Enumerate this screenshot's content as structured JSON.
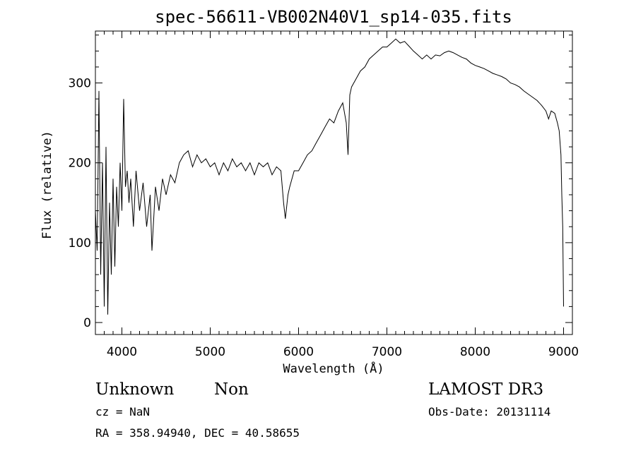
{
  "chart_data": {
    "type": "line",
    "title": "spec-56611-VB002N40V1_sp14-035.fits",
    "xlabel": "Wavelength (Å)",
    "ylabel": "Flux (relative)",
    "xlim": [
      3700,
      9100
    ],
    "ylim": [
      -15,
      365
    ],
    "xticks": [
      4000,
      5000,
      6000,
      7000,
      8000,
      9000
    ],
    "yticks": [
      0,
      100,
      200,
      300
    ],
    "grid": false,
    "series": [
      {
        "name": "",
        "x": [
          3700,
          3720,
          3740,
          3760,
          3780,
          3800,
          3820,
          3840,
          3860,
          3880,
          3900,
          3920,
          3940,
          3960,
          3980,
          4000,
          4020,
          4040,
          4060,
          4080,
          4100,
          4130,
          4160,
          4200,
          4240,
          4280,
          4320,
          4340,
          4380,
          4420,
          4460,
          4500,
          4550,
          4600,
          4650,
          4700,
          4750,
          4800,
          4850,
          4900,
          4950,
          5000,
          5050,
          5100,
          5150,
          5200,
          5250,
          5300,
          5350,
          5400,
          5450,
          5500,
          5550,
          5600,
          5650,
          5700,
          5750,
          5800,
          5830,
          5850,
          5880,
          5900,
          5950,
          6000,
          6050,
          6100,
          6150,
          6200,
          6250,
          6300,
          6350,
          6400,
          6450,
          6500,
          6540,
          6560,
          6580,
          6600,
          6650,
          6700,
          6750,
          6800,
          6850,
          6900,
          6950,
          7000,
          7050,
          7100,
          7150,
          7200,
          7250,
          7300,
          7350,
          7400,
          7450,
          7500,
          7550,
          7600,
          7650,
          7700,
          7750,
          7800,
          7850,
          7900,
          7950,
          8000,
          8050,
          8100,
          8150,
          8200,
          8250,
          8300,
          8350,
          8400,
          8450,
          8500,
          8550,
          8600,
          8650,
          8700,
          8750,
          8800,
          8830,
          8860,
          8900,
          8930,
          8950,
          8970,
          8980,
          8990,
          9000
        ],
        "values": [
          140,
          90,
          290,
          60,
          200,
          20,
          220,
          10,
          150,
          60,
          180,
          70,
          170,
          120,
          200,
          140,
          280,
          170,
          190,
          150,
          180,
          120,
          190,
          140,
          175,
          120,
          160,
          90,
          170,
          140,
          180,
          160,
          185,
          175,
          200,
          210,
          215,
          195,
          210,
          200,
          205,
          195,
          200,
          185,
          200,
          190,
          205,
          195,
          200,
          190,
          200,
          185,
          200,
          195,
          200,
          185,
          195,
          190,
          150,
          130,
          160,
          170,
          190,
          190,
          200,
          210,
          215,
          225,
          235,
          245,
          255,
          250,
          265,
          275,
          250,
          210,
          285,
          295,
          305,
          315,
          320,
          330,
          335,
          340,
          345,
          345,
          350,
          355,
          350,
          352,
          346,
          340,
          335,
          330,
          335,
          330,
          335,
          334,
          338,
          340,
          338,
          335,
          332,
          330,
          325,
          322,
          320,
          318,
          315,
          312,
          310,
          308,
          305,
          300,
          298,
          295,
          290,
          286,
          282,
          278,
          272,
          265,
          255,
          265,
          262,
          250,
          240,
          210,
          160,
          120,
          20
        ]
      }
    ]
  },
  "info": {
    "object_class": "Unknown",
    "subclass": "Non",
    "survey": "LAMOST DR3",
    "cz": "cz = NaN",
    "obs_date": "Obs-Date: 20131114",
    "coords": "RA = 358.94940, DEC =  40.58655"
  }
}
